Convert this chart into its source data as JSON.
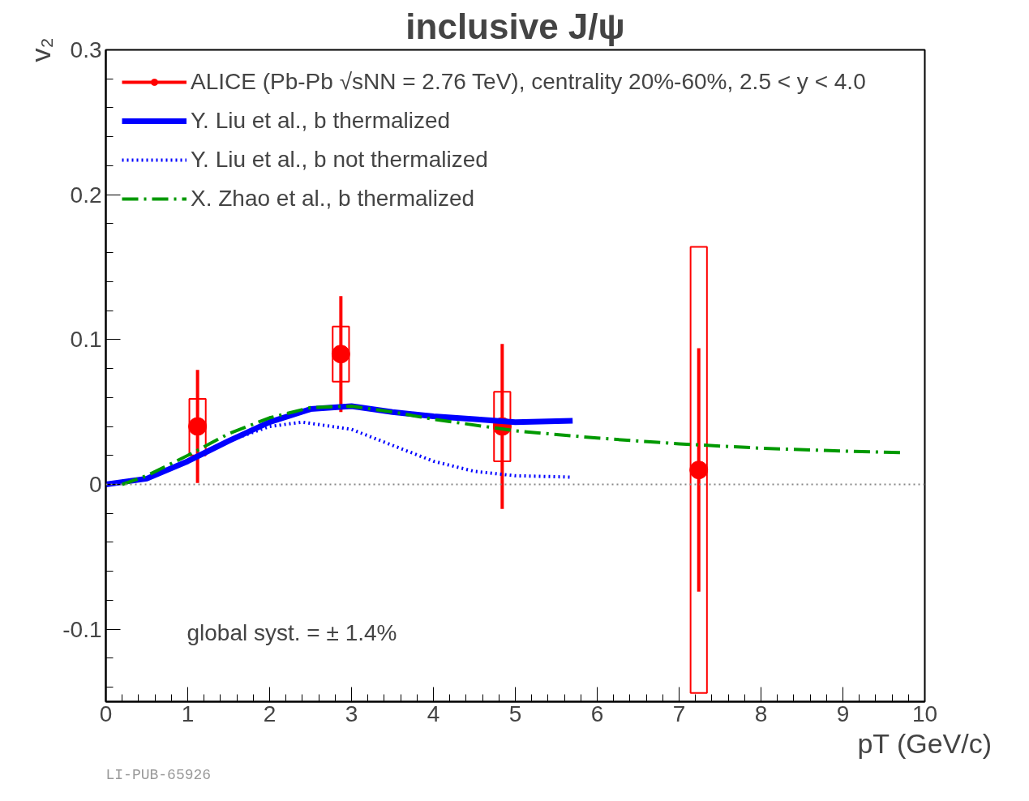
{
  "chart_data": {
    "type": "line",
    "title": "inclusive J/ψ",
    "xlabel": "pT (GeV/c)",
    "ylabel": "v₂",
    "xlim": [
      0,
      10
    ],
    "ylim": [
      -0.15,
      0.3
    ],
    "xticks": [
      0,
      1,
      2,
      3,
      4,
      5,
      6,
      7,
      8,
      9,
      10
    ],
    "yticks": [
      -0.1,
      0,
      0.1,
      0.2,
      0.3
    ],
    "grid": false,
    "legend": "top left",
    "series": [
      {
        "name": "ALICE (Pb-Pb √sNN = 2.76 TeV), centrality 20%-60%, 2.5 < y < 4.0",
        "type": "scatter",
        "marker": "circle",
        "color": "#ff0000",
        "x": [
          1.12,
          2.87,
          4.84,
          7.24
        ],
        "values": [
          0.04,
          0.09,
          0.04,
          0.01
        ],
        "errors": [
          0.039,
          0.04,
          0.057,
          0.084
        ]
      },
      {
        "type": "bar",
        "color": "#ff0000",
        "x": [
          1.12,
          2.87,
          4.84,
          7.24
        ],
        "base": [
          0.02,
          0.071,
          0.016,
          -0.144
        ],
        "values": [
          0.039,
          0.038,
          0.048,
          0.308
        ]
      },
      {
        "name": "Y. Liu et al., b thermalized",
        "line_style": "solid",
        "color": "#0000ff",
        "x": [
          0,
          0.5,
          1,
          1.5,
          2,
          2.5,
          3,
          3.5,
          4,
          4.5,
          5,
          5.7
        ],
        "values": [
          0,
          0.004,
          0.016,
          0.03,
          0.043,
          0.052,
          0.054,
          0.05,
          0.047,
          0.045,
          0.043,
          0.044
        ]
      },
      {
        "name": "Y. Liu et al., b not thermalized",
        "line_style": "dotted",
        "color": "#0000ff",
        "x": [
          0,
          0.5,
          1,
          1.5,
          2,
          2.4,
          3,
          3.5,
          4,
          4.5,
          5,
          5.7
        ],
        "values": [
          0,
          0.004,
          0.016,
          0.03,
          0.04,
          0.043,
          0.038,
          0.027,
          0.016,
          0.009,
          0.006,
          0.005
        ]
      },
      {
        "name": "X. Zhao et al., b thermalized",
        "line_style": "dashdot",
        "color": "#009900",
        "x": [
          0.2,
          0.5,
          1,
          1.5,
          2,
          2.5,
          3,
          3.5,
          4,
          5,
          6,
          7,
          8,
          9,
          9.7
        ],
        "values": [
          0,
          0.006,
          0.02,
          0.035,
          0.046,
          0.053,
          0.054,
          0.05,
          0.045,
          0.037,
          0.032,
          0.028,
          0.025,
          0.023,
          0.022
        ]
      }
    ],
    "ref_lines": [
      {
        "axis": "y",
        "value": 0,
        "color": "#888888",
        "line_style": "dotted"
      }
    ],
    "annotations": [
      "global syst. = ± 1.4%",
      "LI-PUB-65926"
    ]
  }
}
